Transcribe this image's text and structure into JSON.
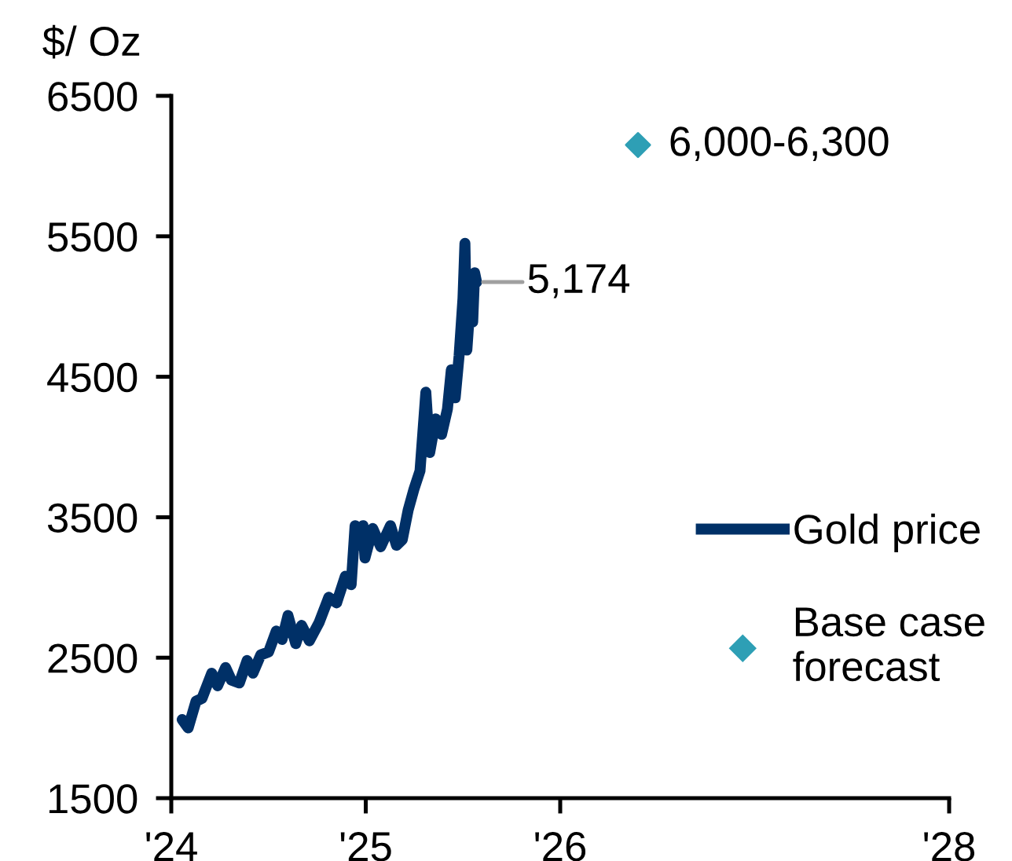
{
  "chart_data": {
    "type": "line",
    "ylabel": "$/ Oz",
    "xlim": [
      2024,
      2028
    ],
    "xticks": [
      {
        "value": 2024,
        "label": "'24"
      },
      {
        "value": 2025,
        "label": "'25"
      },
      {
        "value": 2026,
        "label": "'26"
      },
      {
        "value": 2028,
        "label": "'28"
      }
    ],
    "ylim": [
      1500,
      6500
    ],
    "yticks": [
      1500,
      2500,
      3500,
      4500,
      5500,
      6500
    ],
    "grid": false,
    "legend": "right",
    "series": [
      {
        "name": "Gold price",
        "type": "line",
        "color": "#003067",
        "marker": "none",
        "line_style": "solid",
        "x": [
          2024.056,
          2024.087,
          2024.127,
          2024.158,
          2024.208,
          2024.238,
          2024.279,
          2024.309,
          2024.35,
          2024.39,
          2024.42,
          2024.46,
          2024.5,
          2024.54,
          2024.57,
          2024.6,
          2024.64,
          2024.67,
          2024.71,
          2024.76,
          2024.81,
          2024.85,
          2024.895,
          2024.925,
          2024.945,
          2024.965,
          2024.986,
          2024.996,
          2025.036,
          2025.077,
          2025.127,
          2025.158,
          2025.188,
          2025.218,
          2025.248,
          2025.279,
          2025.309,
          2025.329,
          2025.36,
          2025.39,
          2025.42,
          2025.44,
          2025.46,
          2025.48,
          2025.5,
          2025.51,
          2025.52,
          2025.54,
          2025.55,
          2025.56,
          2025.57
        ],
        "values": [
          2060,
          2000,
          2190,
          2210,
          2390,
          2300,
          2430,
          2340,
          2320,
          2480,
          2390,
          2520,
          2540,
          2690,
          2630,
          2800,
          2600,
          2730,
          2620,
          2750,
          2930,
          2890,
          3080,
          3020,
          3440,
          3300,
          3440,
          3210,
          3420,
          3290,
          3440,
          3300,
          3340,
          3550,
          3700,
          3830,
          4390,
          3960,
          4200,
          4090,
          4270,
          4550,
          4350,
          4650,
          5060,
          5450,
          4690,
          5090,
          4890,
          5240,
          5174
        ]
      },
      {
        "name": "Base case forecast",
        "type": "scatter",
        "color": "#2e9fb5",
        "marker": "diamond",
        "x": [
          2026.4
        ],
        "values": [
          6150
        ]
      }
    ],
    "annotations": [
      {
        "text": "5,174",
        "x": 2025.57,
        "y": 5174
      },
      {
        "text": "6,000-6,300",
        "x": 2026.4,
        "y": 6150
      }
    ]
  }
}
